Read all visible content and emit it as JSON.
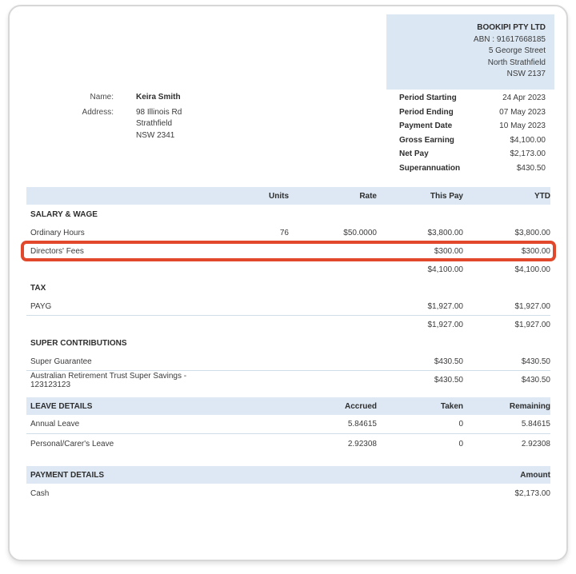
{
  "company": {
    "name": "BOOKIPI PTY LTD",
    "abn": "ABN : 91617668185",
    "address_line1": "5 George Street",
    "address_line2": "North Strathfield",
    "address_line3": "NSW 2137"
  },
  "employee": {
    "name_label": "Name:",
    "name": "Keira Smith",
    "address_label": "Address:",
    "address_line1": "98 Illinois Rd",
    "address_line2": "Strathfield",
    "address_line3": "NSW 2341"
  },
  "summary": {
    "rows": [
      {
        "label": "Period Starting",
        "value": "24 Apr 2023"
      },
      {
        "label": "Period Ending",
        "value": "07 May 2023"
      },
      {
        "label": "Payment Date",
        "value": "10 May 2023"
      },
      {
        "label": "Gross Earning",
        "value": "$4,100.00"
      },
      {
        "label": "Net Pay",
        "value": "$2,173.00"
      },
      {
        "label": "Superannuation",
        "value": "$430.50"
      }
    ]
  },
  "earnings_table": {
    "headers": {
      "units": "Units",
      "rate": "Rate",
      "this_pay": "This Pay",
      "ytd": "YTD"
    },
    "salary_section": {
      "title": "SALARY & WAGE",
      "rows": [
        {
          "label": "Ordinary Hours",
          "units": "76",
          "rate": "$50.0000",
          "this_pay": "$3,800.00",
          "ytd": "$3,800.00"
        },
        {
          "label": "Directors' Fees",
          "units": "",
          "rate": "",
          "this_pay": "$300.00",
          "ytd": "$300.00"
        }
      ],
      "total": {
        "this_pay": "$4,100.00",
        "ytd": "$4,100.00"
      }
    },
    "tax_section": {
      "title": "TAX",
      "rows": [
        {
          "label": "PAYG",
          "this_pay": "$1,927.00",
          "ytd": "$1,927.00"
        }
      ],
      "total": {
        "this_pay": "$1,927.00",
        "ytd": "$1,927.00"
      }
    },
    "super_section": {
      "title": "SUPER CONTRIBUTIONS",
      "rows": [
        {
          "label": "Super Guarantee",
          "this_pay": "$430.50",
          "ytd": "$430.50"
        },
        {
          "label": "Australian Retirement Trust Super Savings - 123123123",
          "this_pay": "$430.50",
          "ytd": "$430.50"
        }
      ]
    }
  },
  "leave_table": {
    "title": "LEAVE DETAILS",
    "headers": {
      "accrued": "Accrued",
      "taken": "Taken",
      "remaining": "Remaining"
    },
    "rows": [
      {
        "label": "Annual Leave",
        "accrued": "5.84615",
        "taken": "0",
        "remaining": "5.84615"
      },
      {
        "label": "Personal/Carer's Leave",
        "accrued": "2.92308",
        "taken": "0",
        "remaining": "2.92308"
      }
    ]
  },
  "payment_table": {
    "title": "PAYMENT DETAILS",
    "amount_header": "Amount",
    "rows": [
      {
        "label": "Cash",
        "amount": "$2,173.00"
      }
    ]
  },
  "colors": {
    "band_bg": "#dde8f4",
    "company_box_bg": "#dbe7f3",
    "highlight_border": "#e2492c",
    "divider": "#cfdde9",
    "text": "#3b3b3b"
  }
}
